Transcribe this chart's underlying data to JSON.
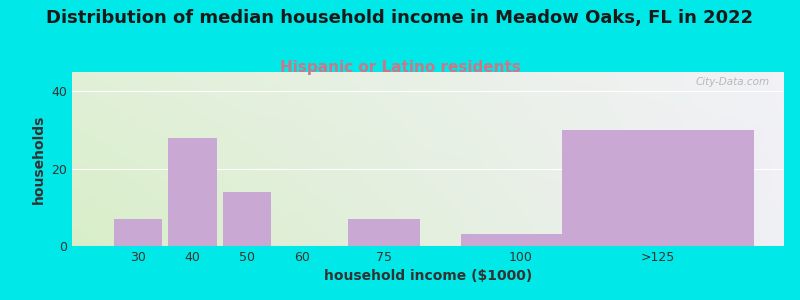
{
  "title": "Distribution of median household income in Meadow Oaks, FL in 2022",
  "subtitle": "Hispanic or Latino residents",
  "xlabel": "household income ($1000)",
  "ylabel": "households",
  "categories": [
    "30",
    "40",
    "50",
    "60",
    "75",
    "100",
    ">125"
  ],
  "values": [
    7,
    28,
    14,
    0,
    7,
    3,
    30
  ],
  "bar_color": "#c9a8d4",
  "background_outer": "#00e8e8",
  "background_grad_left": "#d8eec8",
  "background_grad_right": "#f0f0f5",
  "background_top": "#f5f5fa",
  "grid_color": "#e8e8ee",
  "title_fontsize": 13,
  "subtitle_fontsize": 11,
  "subtitle_color": "#cc7788",
  "axis_label_fontsize": 10,
  "tick_fontsize": 9,
  "ylim": [
    0,
    45
  ],
  "yticks": [
    0,
    20,
    40
  ],
  "watermark": "City-Data.com",
  "bar_positions": [
    30,
    40,
    50,
    60,
    75,
    100,
    125
  ],
  "bar_widths": [
    10,
    10,
    10,
    15,
    15,
    25,
    40
  ],
  "xlim_left": 18,
  "xlim_right": 148
}
